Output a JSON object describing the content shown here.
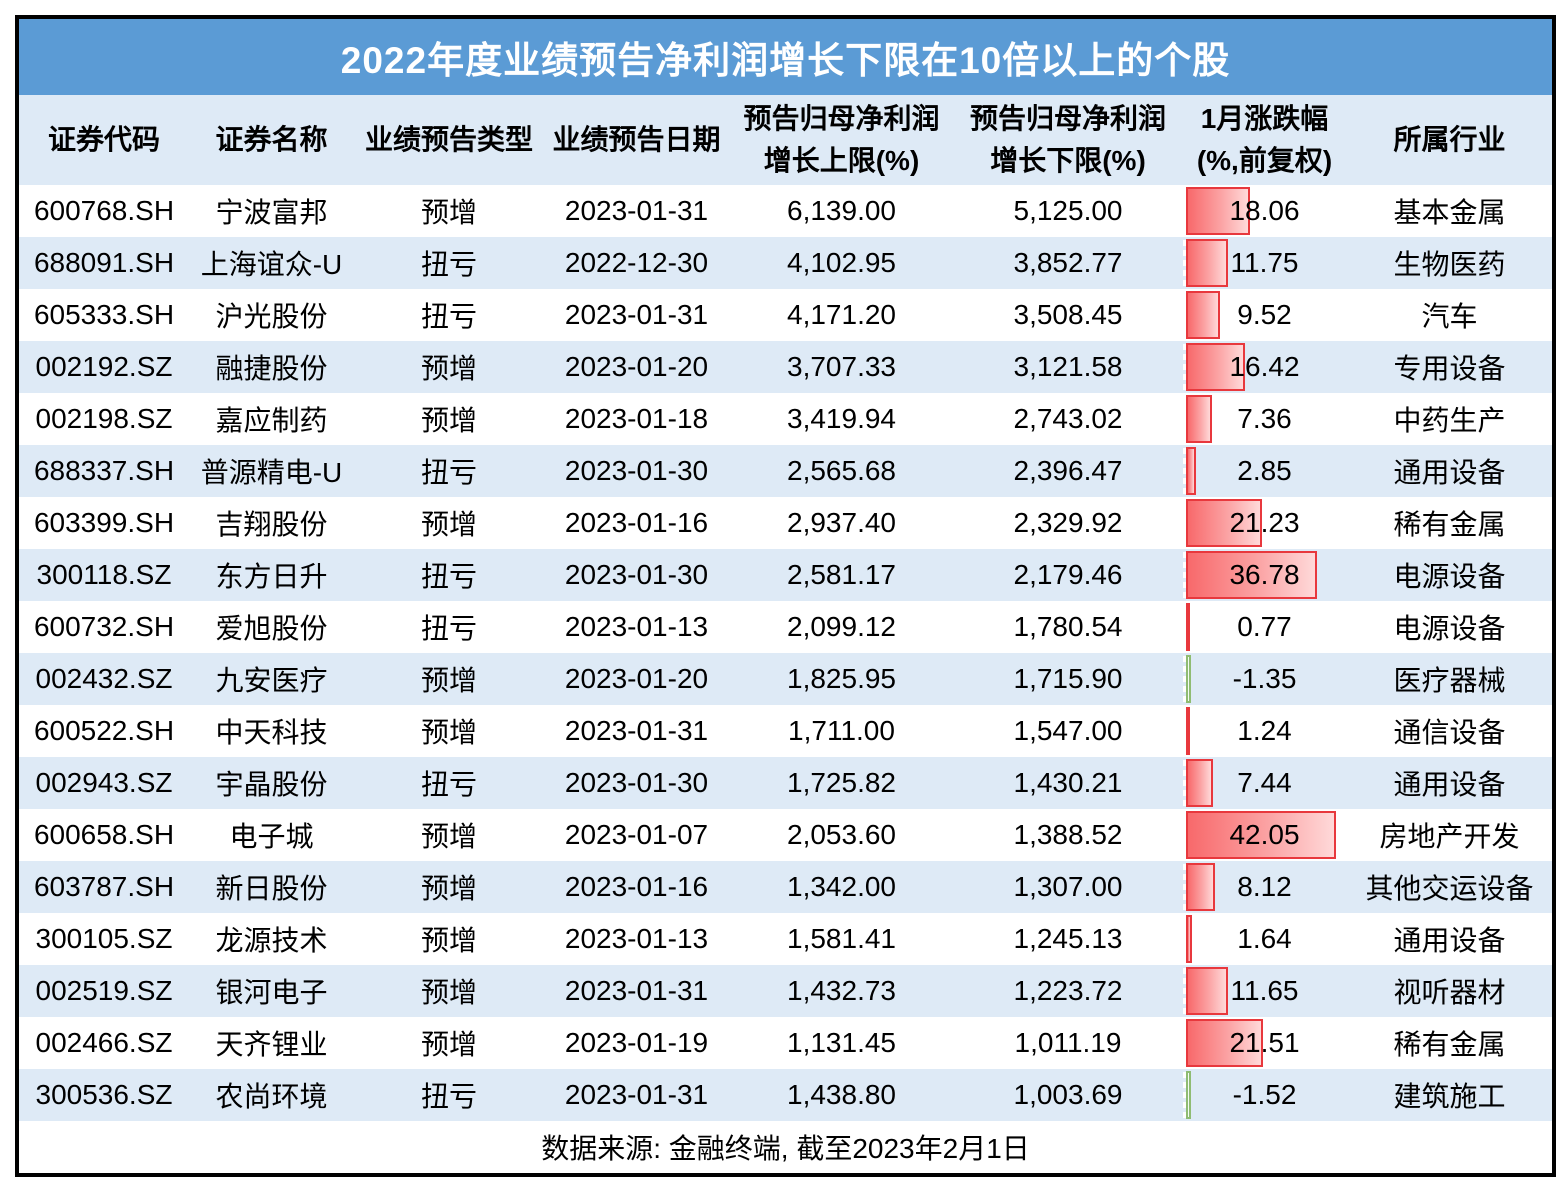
{
  "title": "2022年度业绩预告净利润增长下限在10倍以上的个股",
  "columns": [
    {
      "id": "code",
      "label": "证券代码"
    },
    {
      "id": "name",
      "label": "证券名称"
    },
    {
      "id": "type",
      "label": "业绩预告类型"
    },
    {
      "id": "date",
      "label": "业绩预告日期"
    },
    {
      "id": "upper",
      "label_line1": "预告归母净利润",
      "label_line2": "增长上限(%)"
    },
    {
      "id": "lower",
      "label_line1": "预告归母净利润",
      "label_line2": "增长下限(%)"
    },
    {
      "id": "change",
      "label_line1": "1月涨跌幅",
      "label_line2": "(%,前复权)"
    },
    {
      "id": "industry",
      "label": "所属行业"
    }
  ],
  "rows": [
    {
      "code": "600768.SH",
      "name": "宁波富邦",
      "type": "预增",
      "date": "2023-01-31",
      "upper": "6,139.00",
      "lower": "5,125.00",
      "change": "18.06",
      "change_value": 18.06,
      "industry": "基本金属"
    },
    {
      "code": "688091.SH",
      "name": "上海谊众-U",
      "type": "扭亏",
      "date": "2022-12-30",
      "upper": "4,102.95",
      "lower": "3,852.77",
      "change": "11.75",
      "change_value": 11.75,
      "industry": "生物医药"
    },
    {
      "code": "605333.SH",
      "name": "沪光股份",
      "type": "扭亏",
      "date": "2023-01-31",
      "upper": "4,171.20",
      "lower": "3,508.45",
      "change": "9.52",
      "change_value": 9.52,
      "industry": "汽车"
    },
    {
      "code": "002192.SZ",
      "name": "融捷股份",
      "type": "预增",
      "date": "2023-01-20",
      "upper": "3,707.33",
      "lower": "3,121.58",
      "change": "16.42",
      "change_value": 16.42,
      "industry": "专用设备"
    },
    {
      "code": "002198.SZ",
      "name": "嘉应制药",
      "type": "预增",
      "date": "2023-01-18",
      "upper": "3,419.94",
      "lower": "2,743.02",
      "change": "7.36",
      "change_value": 7.36,
      "industry": "中药生产"
    },
    {
      "code": "688337.SH",
      "name": "普源精电-U",
      "type": "扭亏",
      "date": "2023-01-30",
      "upper": "2,565.68",
      "lower": "2,396.47",
      "change": "2.85",
      "change_value": 2.85,
      "industry": "通用设备"
    },
    {
      "code": "603399.SH",
      "name": "吉翔股份",
      "type": "预增",
      "date": "2023-01-16",
      "upper": "2,937.40",
      "lower": "2,329.92",
      "change": "21.23",
      "change_value": 21.23,
      "industry": "稀有金属"
    },
    {
      "code": "300118.SZ",
      "name": "东方日升",
      "type": "扭亏",
      "date": "2023-01-30",
      "upper": "2,581.17",
      "lower": "2,179.46",
      "change": "36.78",
      "change_value": 36.78,
      "industry": "电源设备"
    },
    {
      "code": "600732.SH",
      "name": "爱旭股份",
      "type": "扭亏",
      "date": "2023-01-13",
      "upper": "2,099.12",
      "lower": "1,780.54",
      "change": "0.77",
      "change_value": 0.77,
      "industry": "电源设备"
    },
    {
      "code": "002432.SZ",
      "name": "九安医疗",
      "type": "预增",
      "date": "2023-01-20",
      "upper": "1,825.95",
      "lower": "1,715.90",
      "change": "-1.35",
      "change_value": -1.35,
      "industry": "医疗器械"
    },
    {
      "code": "600522.SH",
      "name": "中天科技",
      "type": "预增",
      "date": "2023-01-31",
      "upper": "1,711.00",
      "lower": "1,547.00",
      "change": "1.24",
      "change_value": 1.24,
      "industry": "通信设备"
    },
    {
      "code": "002943.SZ",
      "name": "宇晶股份",
      "type": "扭亏",
      "date": "2023-01-30",
      "upper": "1,725.82",
      "lower": "1,430.21",
      "change": "7.44",
      "change_value": 7.44,
      "industry": "通用设备"
    },
    {
      "code": "600658.SH",
      "name": "电子城",
      "type": "预增",
      "date": "2023-01-07",
      "upper": "2,053.60",
      "lower": "1,388.52",
      "change": "42.05",
      "change_value": 42.05,
      "industry": "房地产开发"
    },
    {
      "code": "603787.SH",
      "name": "新日股份",
      "type": "预增",
      "date": "2023-01-16",
      "upper": "1,342.00",
      "lower": "1,307.00",
      "change": "8.12",
      "change_value": 8.12,
      "industry": "其他交运设备"
    },
    {
      "code": "300105.SZ",
      "name": "龙源技术",
      "type": "预增",
      "date": "2023-01-13",
      "upper": "1,581.41",
      "lower": "1,245.13",
      "change": "1.64",
      "change_value": 1.64,
      "industry": "通用设备"
    },
    {
      "code": "002519.SZ",
      "name": "银河电子",
      "type": "预增",
      "date": "2023-01-31",
      "upper": "1,432.73",
      "lower": "1,223.72",
      "change": "11.65",
      "change_value": 11.65,
      "industry": "视听器材"
    },
    {
      "code": "002466.SZ",
      "name": "天齐锂业",
      "type": "预增",
      "date": "2023-01-19",
      "upper": "1,131.45",
      "lower": "1,011.19",
      "change": "21.51",
      "change_value": 21.51,
      "industry": "稀有金属"
    },
    {
      "code": "300536.SZ",
      "name": "农尚环境",
      "type": "扭亏",
      "date": "2023-01-31",
      "upper": "1,438.80",
      "lower": "1,003.69",
      "change": "-1.52",
      "change_value": -1.52,
      "industry": "建筑施工"
    }
  ],
  "footer": "数据来源: 金融终端, 截至2023年2月1日",
  "colors": {
    "title_bg": "#5B9BD5",
    "title_text": "#FFFFFF",
    "header_bg": "#DEEAF6",
    "row_bg": "#FFFFFF",
    "row_alt_bg": "#DEEAF6",
    "text": "#000000",
    "frame_border": "#000000",
    "bar_positive_start": "#F8696B",
    "bar_positive_end": "#FFD9D9",
    "bar_positive_border": "#E8383D",
    "bar_negative_fill": "#EAF4E4",
    "bar_negative_border": "#8FBC72"
  },
  "chart_data": {
    "type": "table",
    "title": "2022年度业绩预告净利润增长下限在10倍以上的个股",
    "columns": [
      "证券代码",
      "证券名称",
      "业绩预告类型",
      "业绩预告日期",
      "预告归母净利润增长上限(%)",
      "预告归母净利润增长下限(%)",
      "1月涨跌幅(%,前复权)",
      "所属行业"
    ],
    "rows": [
      [
        "600768.SH",
        "宁波富邦",
        "预增",
        "2023-01-31",
        6139.0,
        5125.0,
        18.06,
        "基本金属"
      ],
      [
        "688091.SH",
        "上海谊众-U",
        "扭亏",
        "2022-12-30",
        4102.95,
        3852.77,
        11.75,
        "生物医药"
      ],
      [
        "605333.SH",
        "沪光股份",
        "扭亏",
        "2023-01-31",
        4171.2,
        3508.45,
        9.52,
        "汽车"
      ],
      [
        "002192.SZ",
        "融捷股份",
        "预增",
        "2023-01-20",
        3707.33,
        3121.58,
        16.42,
        "专用设备"
      ],
      [
        "002198.SZ",
        "嘉应制药",
        "预增",
        "2023-01-18",
        3419.94,
        2743.02,
        7.36,
        "中药生产"
      ],
      [
        "688337.SH",
        "普源精电-U",
        "扭亏",
        "2023-01-30",
        2565.68,
        2396.47,
        2.85,
        "通用设备"
      ],
      [
        "603399.SH",
        "吉翔股份",
        "预增",
        "2023-01-16",
        2937.4,
        2329.92,
        21.23,
        "稀有金属"
      ],
      [
        "300118.SZ",
        "东方日升",
        "扭亏",
        "2023-01-30",
        2581.17,
        2179.46,
        36.78,
        "电源设备"
      ],
      [
        "600732.SH",
        "爱旭股份",
        "扭亏",
        "2023-01-13",
        2099.12,
        1780.54,
        0.77,
        "电源设备"
      ],
      [
        "002432.SZ",
        "九安医疗",
        "预增",
        "2023-01-20",
        1825.95,
        1715.9,
        -1.35,
        "医疗器械"
      ],
      [
        "600522.SH",
        "中天科技",
        "预增",
        "2023-01-31",
        1711.0,
        1547.0,
        1.24,
        "通信设备"
      ],
      [
        "002943.SZ",
        "宇晶股份",
        "扭亏",
        "2023-01-30",
        1725.82,
        1430.21,
        7.44,
        "通用设备"
      ],
      [
        "600658.SH",
        "电子城",
        "预增",
        "2023-01-07",
        2053.6,
        1388.52,
        42.05,
        "房地产开发"
      ],
      [
        "603787.SH",
        "新日股份",
        "预增",
        "2023-01-16",
        1342.0,
        1307.0,
        8.12,
        "其他交运设备"
      ],
      [
        "300105.SZ",
        "龙源技术",
        "预增",
        "2023-01-13",
        1581.41,
        1245.13,
        1.64,
        "通用设备"
      ],
      [
        "002519.SZ",
        "银河电子",
        "预增",
        "2023-01-31",
        1432.73,
        1223.72,
        11.65,
        "视听器材"
      ],
      [
        "002466.SZ",
        "天齐锂业",
        "预增",
        "2023-01-19",
        1131.45,
        1011.19,
        21.51,
        "稀有金属"
      ],
      [
        "300536.SZ",
        "农尚环境",
        "扭亏",
        "2023-01-31",
        1438.8,
        1003.69,
        -1.52,
        "建筑施工"
      ]
    ],
    "bar_column": "1月涨跌幅(%,前复权)",
    "bar_axis_max": 42.05,
    "footer": "数据来源: 金融终端, 截至2023年2月1日"
  }
}
